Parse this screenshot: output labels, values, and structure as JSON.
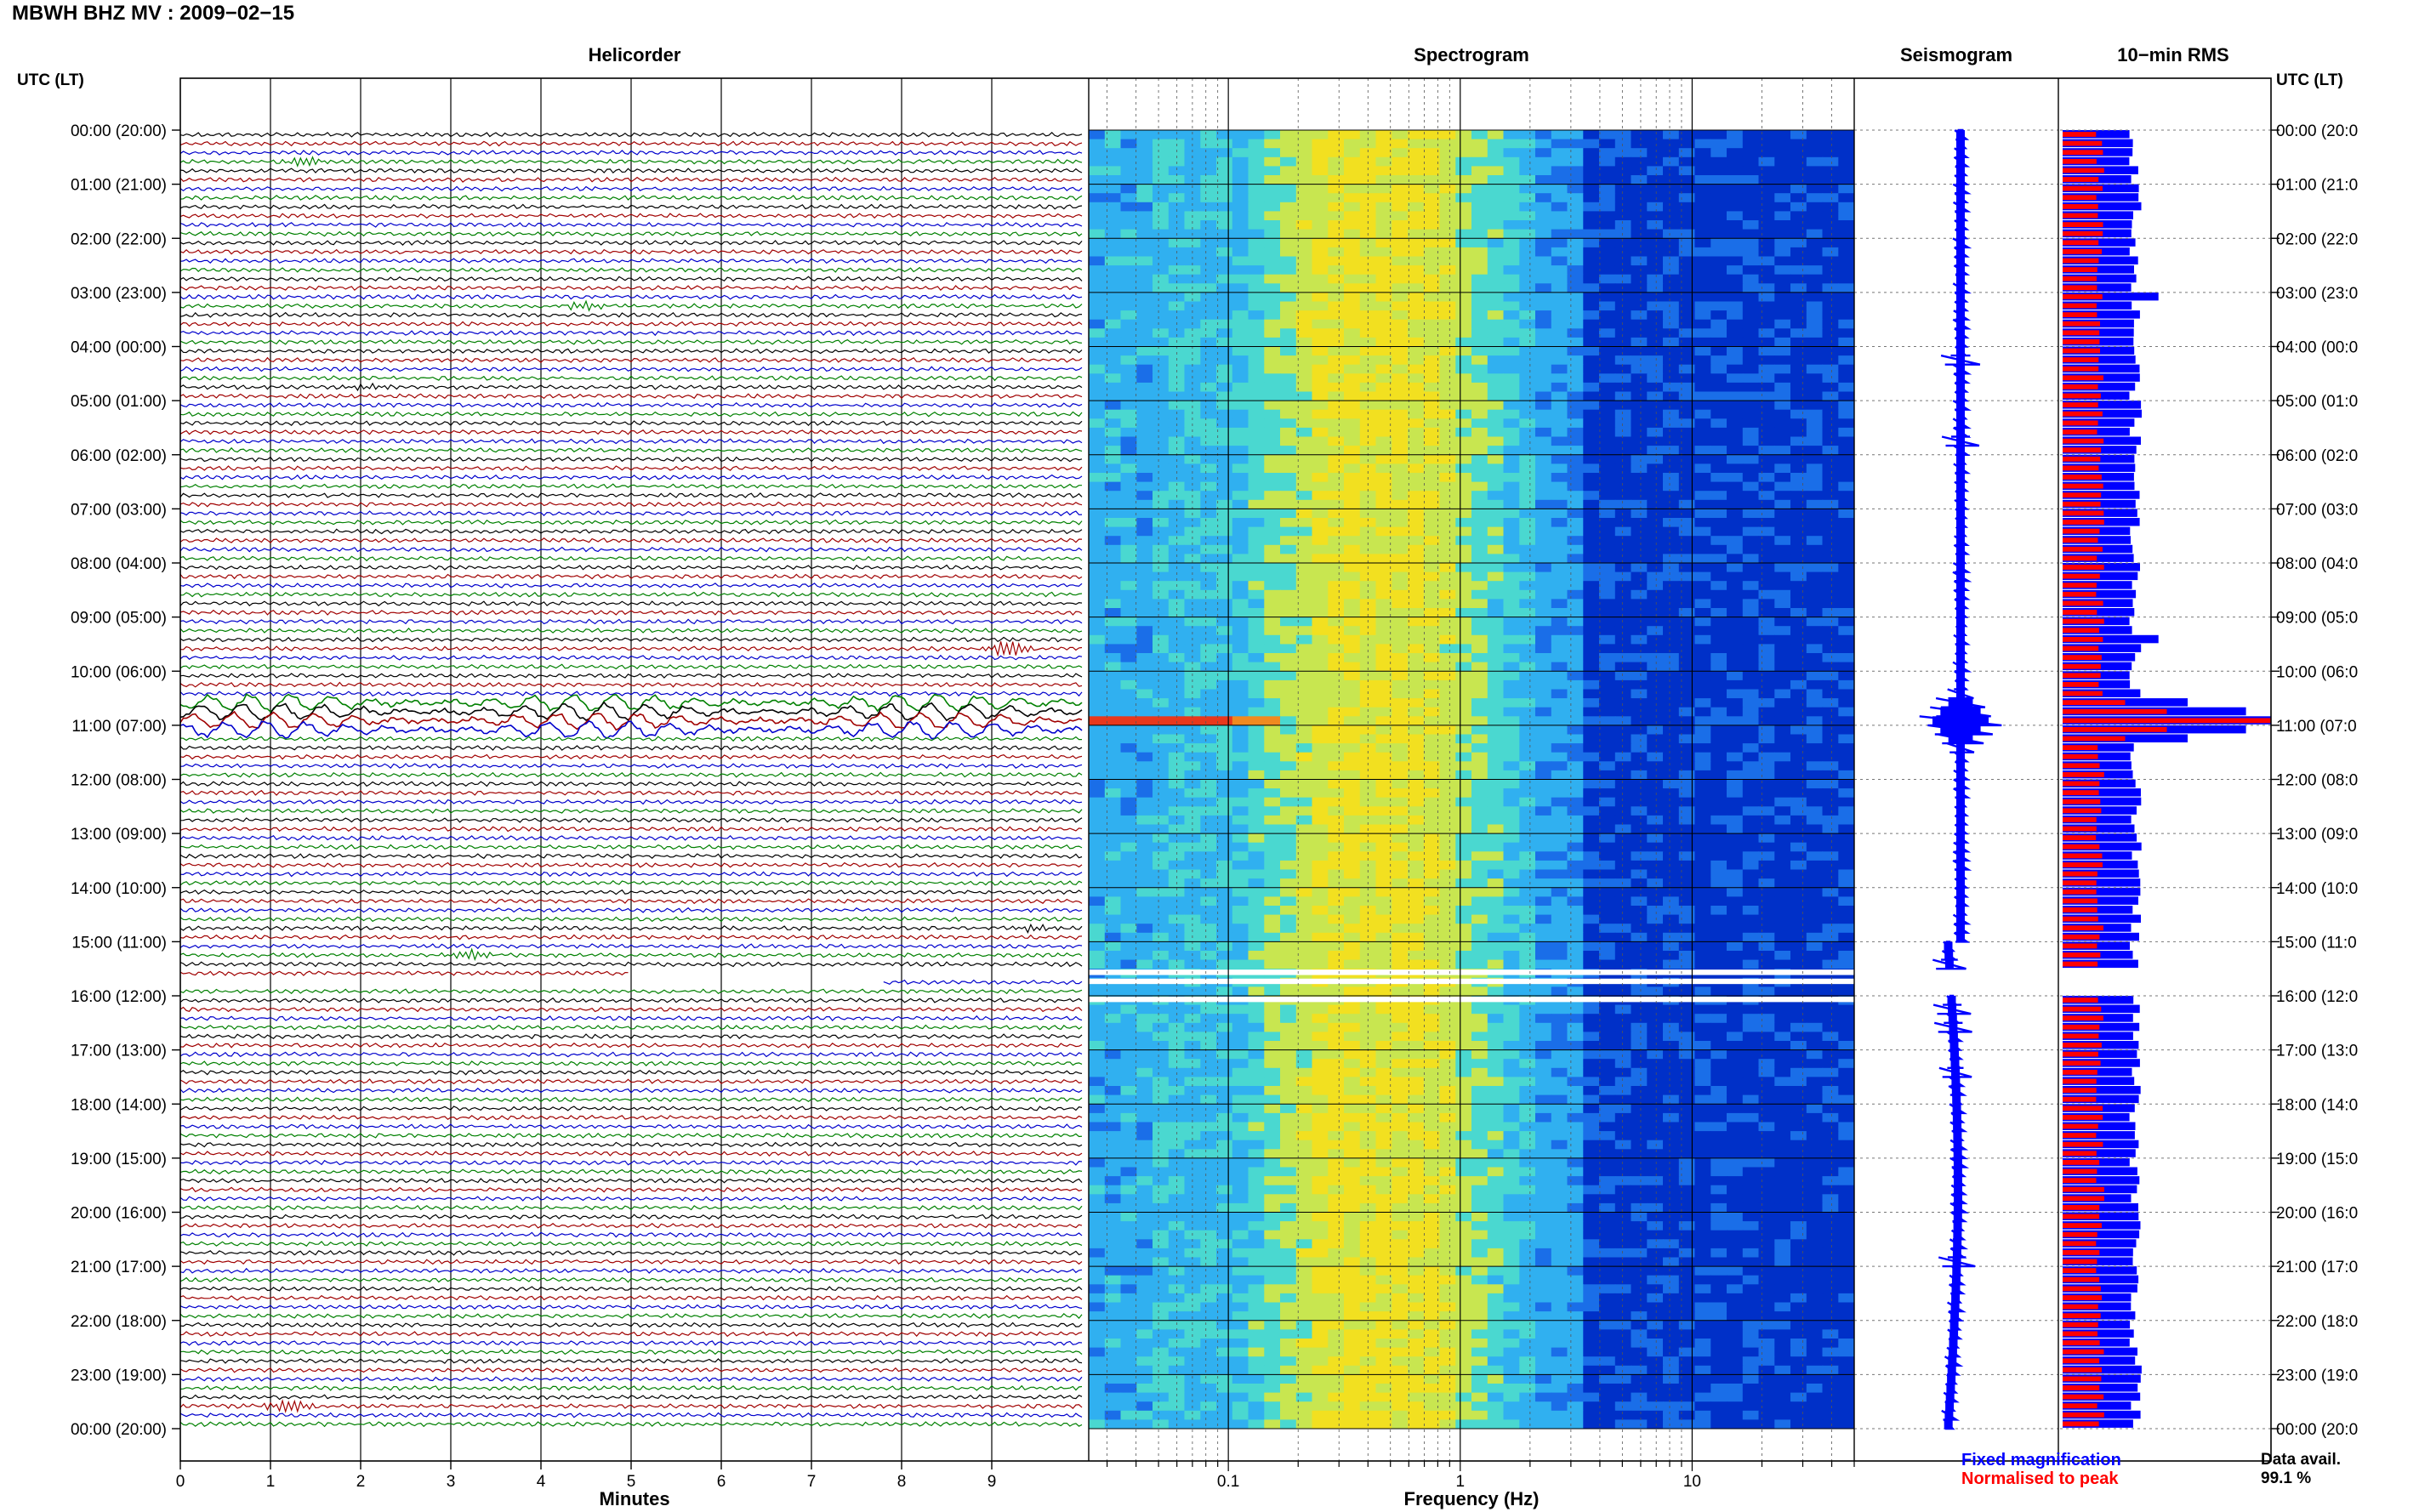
{
  "title": "MBWH BHZ MV : 2009−02−15",
  "time_axis_label": "UTC (LT)",
  "time_labels": [
    "00:00 (20:00)",
    "01:00 (21:00)",
    "02:00 (22:00)",
    "03:00 (23:00)",
    "04:00 (00:00)",
    "05:00 (01:00)",
    "06:00 (02:00)",
    "07:00 (03:00)",
    "08:00 (04:00)",
    "09:00 (05:00)",
    "10:00 (06:00)",
    "11:00 (07:00)",
    "12:00 (08:00)",
    "13:00 (09:00)",
    "14:00 (10:00)",
    "15:00 (11:00)",
    "16:00 (12:00)",
    "17:00 (13:00)",
    "18:00 (14:00)",
    "19:00 (15:00)",
    "20:00 (16:00)",
    "21:00 (17:00)",
    "22:00 (18:00)",
    "23:00 (19:00)",
    "00:00 (20:00)"
  ],
  "right_time_labels": [
    "00:00 (20:0",
    "01:00 (21:0",
    "02:00 (22:0",
    "03:00 (23:0",
    "04:00 (00:0",
    "05:00 (01:0",
    "06:00 (02:0",
    "07:00 (03:0",
    "08:00 (04:0",
    "09:00 (05:0",
    "10:00 (06:0",
    "11:00 (07:0",
    "12:00 (08:0",
    "13:00 (09:0",
    "14:00 (10:0",
    "15:00 (11:0",
    "16:00 (12:0",
    "17:00 (13:0",
    "18:00 (14:0",
    "19:00 (15:0",
    "20:00 (16:0",
    "21:00 (17:0",
    "22:00 (18:0",
    "23:00 (19:0",
    "00:00 (20:0"
  ],
  "legend": {
    "fixed": "Fixed magnification",
    "fixed_color": "#0000ff",
    "normalised": "Normalised to peak",
    "normalised_color": "#ff0000"
  },
  "data_availability": {
    "label": "Data avail.",
    "value": "99.1 %"
  },
  "chart_data": [
    {
      "type": "line",
      "title": "Helicorder",
      "xlabel": "Minutes",
      "xlim": [
        0,
        10
      ],
      "x_ticks": [
        "0",
        "1",
        "2",
        "3",
        "4",
        "5",
        "6",
        "7",
        "8",
        "9"
      ],
      "rows_per_hour": 6,
      "hours": 24,
      "trace_colors": [
        "#000000",
        "#a00000",
        "#0000cc",
        "#008000"
      ],
      "gap": {
        "start_row": 93,
        "start_minute": 5.0,
        "end_row": 94,
        "end_minute": 7.8
      },
      "events": [
        {
          "row": 3,
          "minute": 1.4,
          "amplitude": 3,
          "color": "#008000"
        },
        {
          "row": 19,
          "minute": 4.5,
          "amplitude": 4,
          "color": "#a00000"
        },
        {
          "row": 28,
          "minute": 2.1,
          "amplitude": 3,
          "color": "#000000"
        },
        {
          "row": 57,
          "minute": 9.2,
          "amplitude": 6,
          "color": "#a00000"
        },
        {
          "row": 88,
          "minute": 9.5,
          "amplitude": 3,
          "color": "#000000"
        },
        {
          "row": 91,
          "minute": 3.2,
          "amplitude": 4,
          "color": "#a00000"
        },
        {
          "row": 141,
          "minute": 1.2,
          "amplitude": 4,
          "color": "#000000"
        }
      ],
      "teleseism": {
        "start_row": 63,
        "end_row": 66,
        "amplitude": 18
      }
    },
    {
      "type": "heatmap",
      "title": "Spectrogram",
      "xlabel": "Frequency (Hz)",
      "xscale": "log",
      "xlim": [
        0.025,
        50
      ],
      "x_ticks": [
        "0.1",
        "1",
        "10"
      ],
      "colormap": [
        "#0030c8",
        "#1a6ee8",
        "#30b0f0",
        "#4ad8d0",
        "#c8e650",
        "#f2e020"
      ],
      "gaps_rows": [
        93,
        94,
        96
      ],
      "event_rows": [
        65
      ]
    },
    {
      "type": "line",
      "title": "Seismogram",
      "x_center": 0,
      "peak_row": 65,
      "peak_amplitude": 40,
      "gap": [
        93,
        95
      ]
    },
    {
      "type": "bar",
      "title": "10−min RMS",
      "orientation": "horizontal",
      "series": [
        {
          "name": "Fixed magnification",
          "color": "#0000ff",
          "peak_row": 65,
          "peak_value": 1.0,
          "baseline": 0.35
        },
        {
          "name": "Normalised to peak",
          "color": "#ff0000",
          "peak_row": 65,
          "peak_value": 1.0,
          "baseline": 0.18
        }
      ],
      "gap": [
        93,
        95
      ]
    }
  ]
}
